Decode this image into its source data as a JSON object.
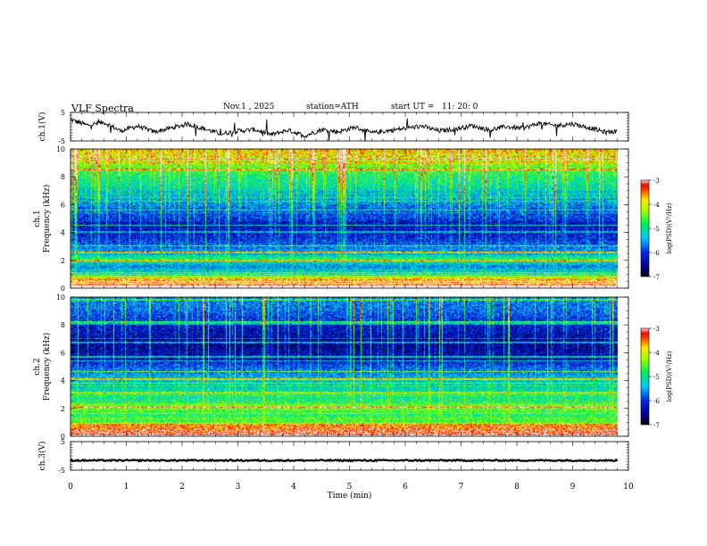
{
  "header": {
    "title": "VLF  Spectra",
    "date": "Nov.1  , 2025",
    "station": "station=ATH",
    "start_label": "start  UT  =",
    "start_time": "11: 20: 0"
  },
  "chart_data": [
    {
      "type": "line",
      "name": "ch1-voltage",
      "ylabel": "ch.1(V)",
      "ylim": [
        -5,
        5
      ],
      "yticks": [
        "5",
        "-5"
      ],
      "xlim": [
        0,
        10
      ],
      "data_extent_min": 9.8,
      "series": [
        {
          "name": "ch.1",
          "x": [
            0,
            0.3,
            0.6,
            0.9,
            1.2,
            1.5,
            1.8,
            2.1,
            2.4,
            2.7,
            3.0,
            3.3,
            3.6,
            3.9,
            4.2,
            4.5,
            4.8,
            5.1,
            5.4,
            5.7,
            6.0,
            6.3,
            6.6,
            6.9,
            7.2,
            7.5,
            7.8,
            8.1,
            8.4,
            8.7,
            9.0,
            9.3,
            9.6,
            9.8
          ],
          "values": [
            2.5,
            0.5,
            1.5,
            -1.5,
            0.2,
            -1.8,
            -0.5,
            1.0,
            -0.8,
            -2.5,
            -1.5,
            -1.0,
            -2.8,
            -1.2,
            -3.2,
            -1.0,
            -1.8,
            -0.2,
            -2.2,
            -1.4,
            -0.6,
            0.2,
            -1.5,
            -0.8,
            0.4,
            -1.2,
            0.0,
            -0.6,
            1.2,
            0.4,
            1.0,
            -0.4,
            -2.0,
            -1.5
          ]
        }
      ]
    },
    {
      "type": "heatmap",
      "name": "ch1-spectrogram",
      "ylabel": "Frequency  (kHz)",
      "channel_label": "ch.1",
      "ylim": [
        0,
        10
      ],
      "yticks": [
        "0",
        "2",
        "4",
        "6",
        "8",
        "10"
      ],
      "xlim": [
        0,
        10
      ],
      "data_extent_min": 9.8,
      "colorbar": {
        "label": "log(PSD)(V²/Hz)",
        "ticks": [
          "-3",
          "-4",
          "-5",
          "-6",
          "-7"
        ],
        "range": [
          -7,
          -3
        ]
      },
      "freq_khz": [
        0,
        0.5,
        1,
        1.5,
        2,
        2.5,
        3,
        3.5,
        4,
        4.5,
        5,
        5.5,
        6,
        6.5,
        7,
        7.5,
        8,
        8.5,
        9,
        9.5,
        10
      ],
      "mean_log_psd": [
        -4.0,
        -4.6,
        -5.2,
        -5.6,
        -4.8,
        -5.5,
        -5.8,
        -6.1,
        -6.2,
        -6.3,
        -6.0,
        -5.9,
        -5.6,
        -5.4,
        -5.2,
        -5.0,
        -4.9,
        -4.6,
        -4.3,
        -4.0,
        -3.8
      ]
    },
    {
      "type": "heatmap",
      "name": "ch2-spectrogram",
      "ylabel": "Frequency  (kHz)",
      "channel_label": "ch.2",
      "ylim": [
        0,
        10
      ],
      "yticks": [
        "0",
        "2",
        "4",
        "6",
        "8",
        "10"
      ],
      "xlim": [
        0,
        10
      ],
      "data_extent_min": 9.8,
      "colorbar": {
        "label": "log(PSD)(V²/Hz)",
        "ticks": [
          "-3",
          "-4",
          "-5",
          "-6",
          "-7"
        ],
        "range": [
          -7,
          -3
        ]
      },
      "freq_khz": [
        0,
        0.5,
        1,
        1.5,
        2,
        2.5,
        3,
        3.5,
        4,
        4.5,
        5,
        5.5,
        6,
        6.5,
        7,
        7.5,
        8,
        8.5,
        9,
        9.5,
        10
      ],
      "mean_log_psd": [
        -3.8,
        -4.2,
        -4.6,
        -4.8,
        -4.4,
        -4.9,
        -5.0,
        -5.2,
        -5.3,
        -5.6,
        -5.9,
        -6.3,
        -6.4,
        -6.5,
        -6.4,
        -6.3,
        -6.2,
        -6.0,
        -5.8,
        -5.7,
        -5.6
      ]
    },
    {
      "type": "line",
      "name": "ch3-voltage",
      "ylabel": "ch.3(V)",
      "ylim": [
        -5,
        5
      ],
      "yticks": [
        "5",
        "-5"
      ],
      "xlim": [
        0,
        10
      ],
      "data_extent_min": 9.8,
      "series": [
        {
          "name": "ch.3",
          "x": [
            0,
            9.8
          ],
          "values": [
            -1.6,
            -1.6
          ]
        }
      ]
    }
  ],
  "xaxis": {
    "label": "Time  (min)",
    "ticks": [
      "0",
      "1",
      "2",
      "3",
      "4",
      "5",
      "6",
      "7",
      "8",
      "9",
      "10"
    ]
  }
}
